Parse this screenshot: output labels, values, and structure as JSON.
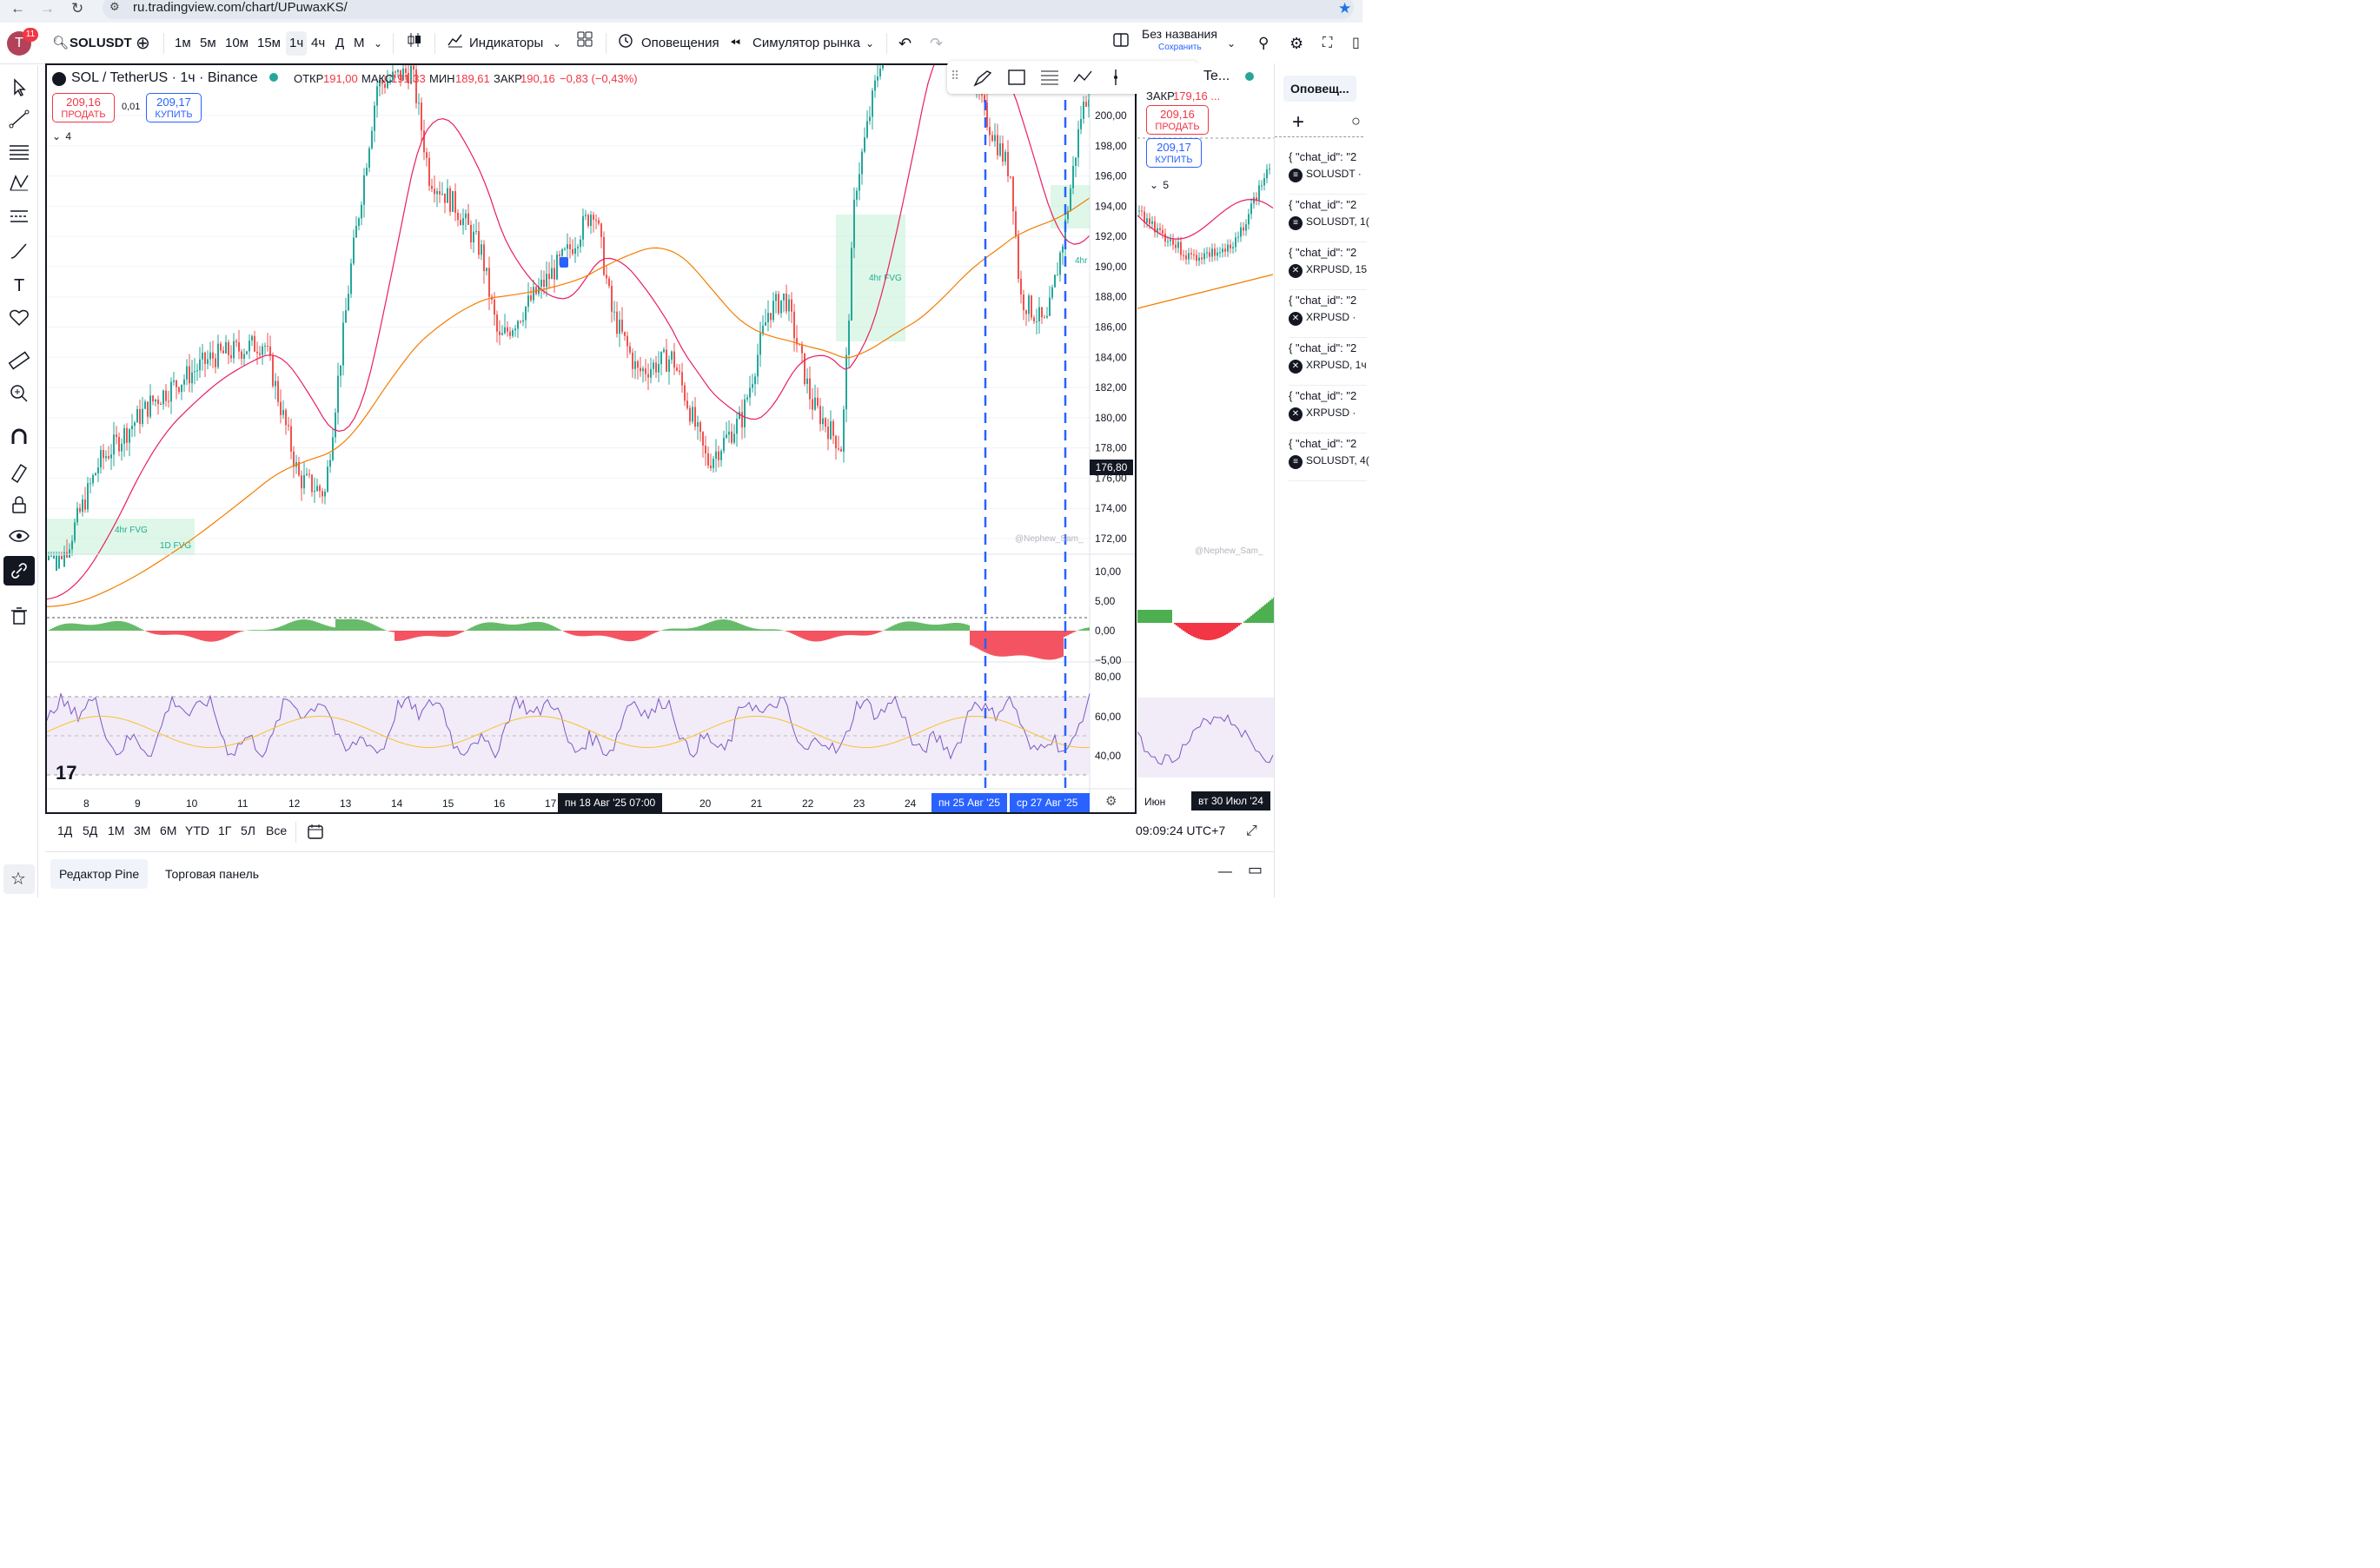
{
  "browser": {
    "url": "ru.tradingview.com/chart/UPuwaxKS/"
  },
  "toolbar": {
    "avatar_letter": "T",
    "notification_count": "11",
    "symbol": "SOLUSDT",
    "intervals": [
      "1м",
      "5м",
      "10м",
      "15м",
      "1ч",
      "4ч",
      "Д",
      "М"
    ],
    "active_interval": "1ч",
    "indicators_label": "Индикаторы",
    "alerts_label": "Оповещения",
    "replay_label": "Симулятор рынка",
    "layout_name": "Без названия",
    "save_label": "Сохранить"
  },
  "chart": {
    "title": "SOL / TetherUS · 1ч · Binance",
    "ohlc": {
      "o_label": "ОТКР",
      "o": "191,00",
      "h_label": "МАКС",
      "h": "191,33",
      "l_label": "МИН",
      "l": "189,61",
      "c_label": "ЗАКР",
      "c": "190,16",
      "change": "−0,83 (−0,43%)"
    },
    "sell_price": "209,16",
    "sell_label": "ПРОДАТЬ",
    "spread": "0,01",
    "buy_price": "209,17",
    "buy_label": "КУПИТЬ",
    "collapse_count": "4",
    "price_axis": [
      "200,00",
      "198,00",
      "196,00",
      "194,00",
      "192,00",
      "190,00",
      "188,00",
      "186,00",
      "184,00",
      "182,00",
      "180,00",
      "178,00",
      "176,00",
      "174,00",
      "172,00"
    ],
    "current_price_tag": "176,80",
    "osc_axis": [
      "10,00",
      "5,00",
      "0,00",
      "−5,00"
    ],
    "rsi_axis": [
      "80,00",
      "60,00",
      "40,00"
    ],
    "time_axis": [
      "8",
      "9",
      "10",
      "11",
      "12",
      "13",
      "14",
      "15",
      "16",
      "17",
      "20",
      "21",
      "22",
      "23",
      "24"
    ],
    "crosshair_date": "пн 18 Авг '25   07:00",
    "range_start": "пн 25 Авг '25",
    "range_end": "ср 27 Авг '25",
    "fvg_labels": [
      "4hr FVG",
      "1D FVG",
      "4hr FVG",
      "4hr"
    ],
    "watermark": "@Nephew_Sam_"
  },
  "secondary_chart": {
    "title": "Te...",
    "close_label": "ЗАКР",
    "close_value": "179,16 ...",
    "sell_price": "209,16",
    "sell_label": "ПРОДАТЬ",
    "buy_price": "209,17",
    "buy_label": "КУПИТЬ",
    "collapse_count": "5",
    "watermark": "@Nephew_Sam_",
    "time_axis": [
      "Июн"
    ],
    "date_tag": "вт 30 Июл '24"
  },
  "right_panel": {
    "title": "Оповещ...",
    "alerts": [
      {
        "title": "{ \"chat_id\": \"2",
        "symbol": "SOLUSDT ·",
        "icon": "solana-icon"
      },
      {
        "title": "{ \"chat_id\": \"2",
        "symbol": "SOLUSDT, 1(",
        "icon": "solana-icon"
      },
      {
        "title": "{ \"chat_id\": \"2",
        "symbol": "XRPUSD, 15",
        "icon": "xrp-icon"
      },
      {
        "title": "{ \"chat_id\": \"2",
        "symbol": "XRPUSD ·",
        "icon": "xrp-icon"
      },
      {
        "title": "{ \"chat_id\": \"2",
        "symbol": "XRPUSD, 1ч",
        "icon": "xrp-icon"
      },
      {
        "title": "{ \"chat_id\": \"2",
        "symbol": "XRPUSD ·",
        "icon": "xrp-icon"
      },
      {
        "title": "{ \"chat_id\": \"2",
        "symbol": "SOLUSDT, 4(",
        "icon": "solana-icon"
      }
    ]
  },
  "range_bar": {
    "ranges": [
      "1Д",
      "5Д",
      "1М",
      "3М",
      "6М",
      "YTD",
      "1Г",
      "5Л",
      "Все"
    ],
    "clock": "09:09:24 UTC+7"
  },
  "bottom_tabs": {
    "pine": "Редактор Pine",
    "trading": "Торговая панель"
  },
  "colors": {
    "up": "#26a69a",
    "down": "#ef5350",
    "ma_fast": "#e91e63",
    "ma_slow": "#f57c00",
    "rsi": "#7e57c2",
    "rsi_ma": "#fbc02d",
    "accent": "#2962ff"
  }
}
